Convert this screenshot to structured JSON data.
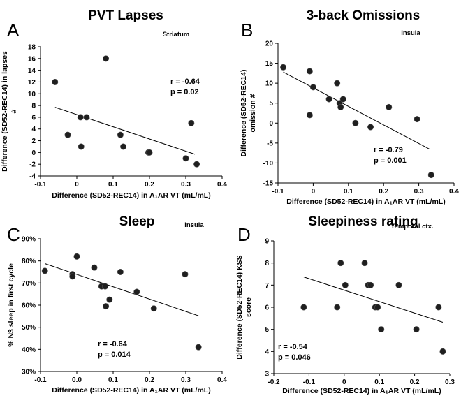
{
  "chart_data": [
    {
      "type": "scatter",
      "letter": "A",
      "title": "PVT Lapses",
      "region": "Striatum",
      "xlabel": "Difference (SD52-REC14) in A₁AR VT (mL/mL)",
      "ylabel": [
        "Difference (SD52-REC14) in lapses",
        "#"
      ],
      "xlim": [
        -0.1,
        0.4
      ],
      "ylim": [
        -4,
        18
      ],
      "xticks": [
        "-0.1",
        "0",
        "0.1",
        "0.2",
        "0.3",
        "0.4"
      ],
      "yticks": [
        "-4",
        "-2",
        "0",
        "2",
        "4",
        "6",
        "8",
        "10",
        "12",
        "14",
        "16",
        "18"
      ],
      "stats": [
        "r = -0.64",
        "p = 0.02"
      ],
      "points": [
        [
          -0.06,
          12
        ],
        [
          -0.025,
          3
        ],
        [
          0.01,
          6
        ],
        [
          0.012,
          1
        ],
        [
          0.027,
          6
        ],
        [
          0.08,
          16
        ],
        [
          0.12,
          3
        ],
        [
          0.128,
          1
        ],
        [
          0.197,
          0
        ],
        [
          0.2,
          0
        ],
        [
          0.3,
          -1
        ],
        [
          0.315,
          5
        ],
        [
          0.33,
          -2
        ]
      ],
      "trend": [
        [
          -0.06,
          7.7
        ],
        [
          0.325,
          -0.3
        ]
      ]
    },
    {
      "type": "scatter",
      "letter": "B",
      "title": "3-back Omissions",
      "region": "Insula",
      "xlabel": "Difference (SD52-REC14) in A₁AR VT (mL/mL)",
      "ylabel": [
        "Difference (SD52-REC14)",
        "omission #"
      ],
      "xlim": [
        -0.1,
        0.4
      ],
      "ylim": [
        -15,
        20
      ],
      "xticks": [
        "-0.1",
        "0",
        "0.1",
        "0.2",
        "0.3",
        "0.4"
      ],
      "yticks": [
        "-15",
        "-10",
        "-5",
        "0",
        "5",
        "10",
        "15",
        "20"
      ],
      "stats": [
        "r = -0.79",
        "p = 0.001"
      ],
      "points": [
        [
          -0.085,
          14
        ],
        [
          -0.01,
          13
        ],
        [
          -0.01,
          2
        ],
        [
          0.0,
          9
        ],
        [
          0.045,
          6
        ],
        [
          0.068,
          10
        ],
        [
          0.075,
          5
        ],
        [
          0.078,
          4
        ],
        [
          0.085,
          6
        ],
        [
          0.12,
          0
        ],
        [
          0.163,
          -1
        ],
        [
          0.215,
          4
        ],
        [
          0.295,
          1
        ],
        [
          0.335,
          -13
        ]
      ],
      "trend": [
        [
          -0.085,
          12.8
        ],
        [
          0.33,
          -6.5
        ]
      ]
    },
    {
      "type": "scatter",
      "letter": "C",
      "title": "Sleep",
      "region": "Insula",
      "xlabel": "Difference (SD52-REC14) in A₁AR VT (mL/mL)",
      "ylabel": [
        "% N3 sleep in first cycle"
      ],
      "xlim": [
        -0.1,
        0.4
      ],
      "ylim": [
        30,
        90
      ],
      "xticks": [
        "-0.1",
        "0.0",
        "0.1",
        "0.2",
        "0.3",
        "0.4"
      ],
      "yticks": [
        "30%",
        "40%",
        "50%",
        "60%",
        "70%",
        "80%",
        "90%"
      ],
      "stats": [
        "r = -0.64",
        "p = 0.014"
      ],
      "points": [
        [
          -0.088,
          75.5
        ],
        [
          -0.012,
          74
        ],
        [
          -0.012,
          73
        ],
        [
          0.0,
          82
        ],
        [
          0.048,
          77
        ],
        [
          0.068,
          68.5
        ],
        [
          0.078,
          68.5
        ],
        [
          0.08,
          59.5
        ],
        [
          0.09,
          62.5
        ],
        [
          0.12,
          75
        ],
        [
          0.165,
          66
        ],
        [
          0.212,
          58.5
        ],
        [
          0.298,
          74
        ],
        [
          0.335,
          41
        ]
      ],
      "trend": [
        [
          -0.088,
          78.8
        ],
        [
          0.335,
          55.2
        ]
      ]
    },
    {
      "type": "scatter",
      "letter": "D",
      "title": "Sleepiness rating",
      "region": "Temporal ctx.",
      "xlabel": "Difference (SD52-REC14) in A₁AR VT (mL/mL)",
      "ylabel": [
        "Difference (SD52-REC14) KSS",
        "score"
      ],
      "xlim": [
        -0.2,
        0.3
      ],
      "ylim": [
        3,
        9
      ],
      "xticks": [
        "-0.2",
        "-0.1",
        "0",
        "0.1",
        "0.2",
        "0.3"
      ],
      "yticks": [
        "3",
        "4",
        "5",
        "6",
        "7",
        "8",
        "9"
      ],
      "stats": [
        "r = -0.54",
        "p = 0.046"
      ],
      "points": [
        [
          -0.115,
          6
        ],
        [
          -0.02,
          6
        ],
        [
          -0.01,
          8
        ],
        [
          0.003,
          7
        ],
        [
          0.058,
          8
        ],
        [
          0.068,
          7
        ],
        [
          0.075,
          7
        ],
        [
          0.088,
          6
        ],
        [
          0.095,
          6
        ],
        [
          0.105,
          5
        ],
        [
          0.155,
          7
        ],
        [
          0.205,
          5
        ],
        [
          0.268,
          6
        ],
        [
          0.28,
          4
        ]
      ],
      "trend": [
        [
          -0.115,
          7.37
        ],
        [
          0.28,
          5.32
        ]
      ]
    }
  ]
}
